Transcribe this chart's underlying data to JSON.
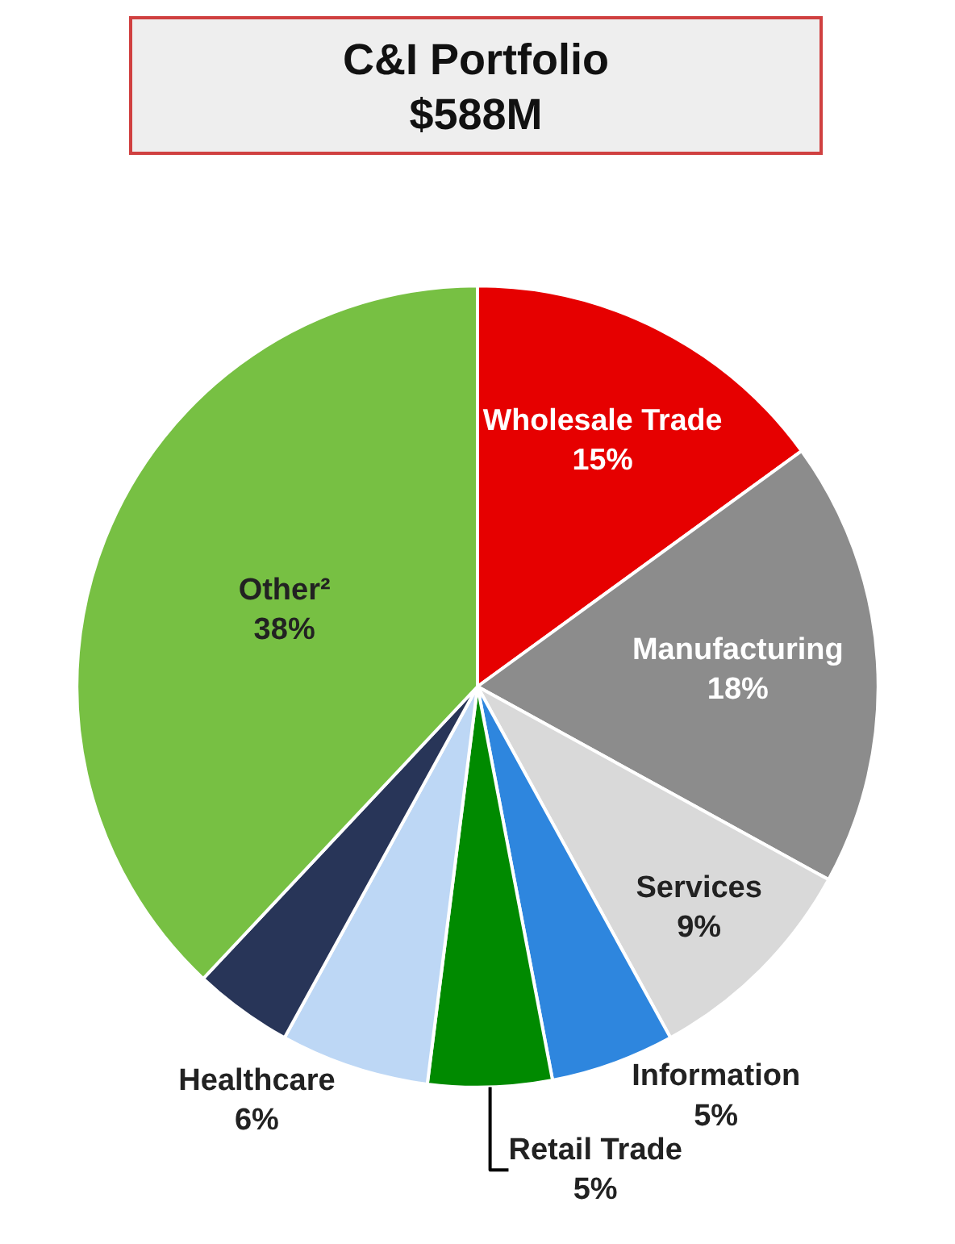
{
  "chart_data": {
    "type": "pie",
    "title": "C&I Portfolio",
    "subtitle": "$588M",
    "categories": [
      "Wholesale Trade",
      "Manufacturing",
      "Services",
      "Information",
      "Retail Trade",
      "Healthcare",
      null,
      "Other²"
    ],
    "values": [
      15,
      18,
      9,
      5,
      5,
      6,
      4,
      38
    ],
    "value_labels": [
      "15%",
      "18%",
      "9%",
      "5%",
      "5%",
      "6%",
      null,
      "38%"
    ],
    "colors": [
      "#e60000",
      "#8c8c8c",
      "#d9d9d9",
      "#2e86de",
      "#008a00",
      "#bdd7f5",
      "#283558",
      "#77c043"
    ],
    "legend": false
  }
}
